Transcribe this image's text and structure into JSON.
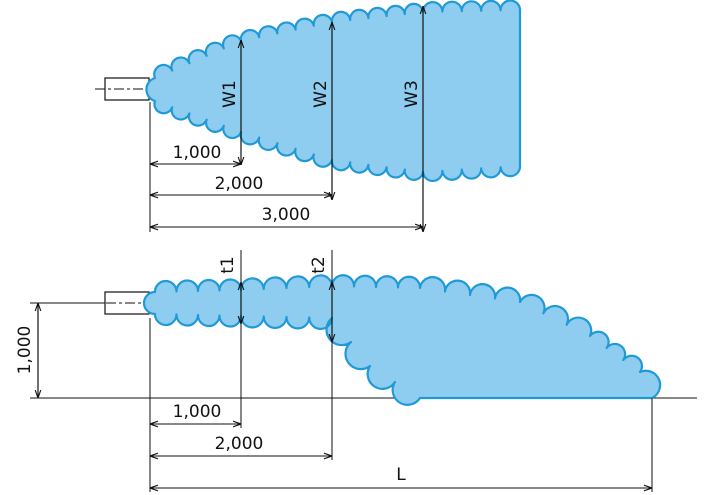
{
  "top_view": {
    "width_labels": [
      "W1",
      "W2",
      "W3"
    ],
    "distance_labels": [
      "1,000",
      "2,000",
      "3,000"
    ]
  },
  "side_view": {
    "thickness_labels": [
      "t1",
      "t2"
    ],
    "height_label": "1,000",
    "distance_labels": [
      "1,000",
      "2,000"
    ],
    "range_label": "L"
  },
  "colors": {
    "spray_fill": "#8fcdf0",
    "spray_outline": "#1f9ad6",
    "line": "#111111"
  }
}
